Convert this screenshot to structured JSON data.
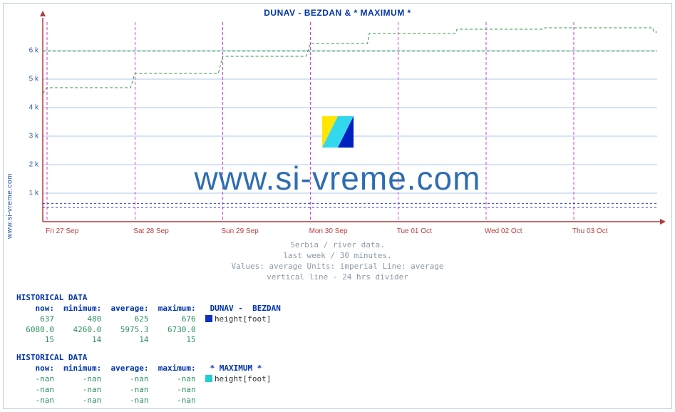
{
  "title": "DUNAV -  BEZDAN & * MAXIMUM *",
  "ylabel_text": "www.si-vreme.com",
  "watermark_text": "www.si-vreme.com",
  "chart": {
    "type": "step-line",
    "xmin": 0,
    "xmax": 7,
    "ymin": 0,
    "ymax": 7000,
    "grid_color": "#a9cbe8",
    "axis_color": "#b23b3b",
    "background_color": "#ffffff",
    "xticks": [
      {
        "pos": 0.05,
        "label": "Fri 27 Sep"
      },
      {
        "pos": 1.05,
        "label": "Sat 28 Sep"
      },
      {
        "pos": 2.05,
        "label": "Sun 29 Sep"
      },
      {
        "pos": 3.05,
        "label": "Mon 30 Sep"
      },
      {
        "pos": 4.05,
        "label": "Tue 01 Oct"
      },
      {
        "pos": 5.05,
        "label": "Wed 02 Oct"
      },
      {
        "pos": 6.05,
        "label": "Thu 03 Oct"
      }
    ],
    "yticks": [
      {
        "pos": 1000,
        "label": "1 k"
      },
      {
        "pos": 2000,
        "label": "2 k"
      },
      {
        "pos": 3000,
        "label": "3 k"
      },
      {
        "pos": 4000,
        "label": "4 k"
      },
      {
        "pos": 5000,
        "label": "5 k"
      },
      {
        "pos": 6000,
        "label": "6 k"
      }
    ],
    "vlines": [
      0.05,
      1.05,
      2.05,
      3.05,
      4.05,
      5.05,
      6.05
    ],
    "series_green": {
      "color": "#2e9a3f",
      "dash": "4 3",
      "width": 1,
      "points": [
        [
          0.0,
          4500
        ],
        [
          0.05,
          4700
        ],
        [
          1.0,
          4700
        ],
        [
          1.05,
          5200
        ],
        [
          2.0,
          5200
        ],
        [
          2.05,
          5800
        ],
        [
          3.0,
          5800
        ],
        [
          3.05,
          6250
        ],
        [
          3.7,
          6250
        ],
        [
          3.72,
          6600
        ],
        [
          4.7,
          6600
        ],
        [
          4.72,
          6750
        ],
        [
          5.7,
          6750
        ],
        [
          5.72,
          6800
        ],
        [
          6.95,
          6800
        ],
        [
          6.96,
          6650
        ],
        [
          7.0,
          6650
        ]
      ]
    },
    "series_green_flat": {
      "color": "#2e9a3f",
      "dash": "4 3",
      "width": 1,
      "y": 5980
    },
    "series_blue_top": {
      "color": "#2443c9",
      "dash": "3 3",
      "width": 1,
      "y": 640
    },
    "series_blue_bot": {
      "color": "#2443c9",
      "dash": "3 3",
      "width": 1,
      "y": 500
    },
    "arrow_color": "#c23b3b"
  },
  "caption": {
    "l1": "Serbia / river data.",
    "l2": "last week / 30 minutes.",
    "l3": "Values: average  Units: imperial  Line: average",
    "l4": "vertical line - 24 hrs  divider"
  },
  "table1": {
    "title": "HISTORICAL DATA",
    "headers": [
      "now:",
      "minimum:",
      "average:",
      "maximum:"
    ],
    "series_name": "DUNAV -  BEZDAN",
    "unit": "height[foot]",
    "swatch_color": "#1030c0",
    "rows": [
      [
        "637",
        "480",
        "625",
        "676"
      ],
      [
        "6080.0",
        "4260.0",
        "5975.3",
        "6730.0"
      ],
      [
        "15",
        "14",
        "14",
        "15"
      ]
    ]
  },
  "table2": {
    "title": "HISTORICAL DATA",
    "headers": [
      "now:",
      "minimum:",
      "average:",
      "maximum:"
    ],
    "series_name": "* MAXIMUM *",
    "unit": "height[foot]",
    "swatch_color": "#20d0d0",
    "rows": [
      [
        "-nan",
        "-nan",
        "-nan",
        "-nan"
      ],
      [
        "-nan",
        "-nan",
        "-nan",
        "-nan"
      ],
      [
        "-nan",
        "-nan",
        "-nan",
        "-nan"
      ]
    ]
  },
  "colors": {
    "title": "#0033aa",
    "caption": "#8a9aa8",
    "value": "#2e925b",
    "xtick": "#c23b3b",
    "ytick": "#2e5aa8",
    "border": "#b8cde2"
  }
}
